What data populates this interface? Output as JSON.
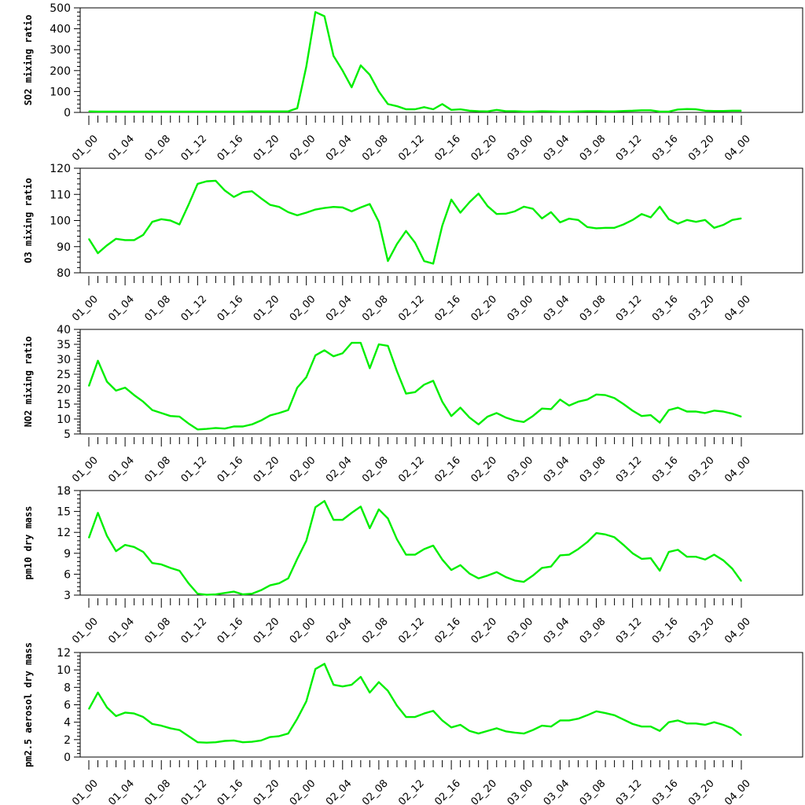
{
  "chart_data": [
    {
      "type": "line",
      "ylabel": "SO2 mixing ratio",
      "xlabel": "",
      "title": "",
      "color": "#00ee00",
      "ylim": [
        0,
        500
      ],
      "yticks": [
        0,
        100,
        200,
        300,
        400,
        500
      ],
      "xtick_labels": [
        "01_00",
        "01_04",
        "01_08",
        "01_12",
        "01_16",
        "01_20",
        "02_00",
        "02_04",
        "02_08",
        "02_12",
        "02_16",
        "02_20",
        "03_00",
        "03_04",
        "03_08",
        "03_12",
        "03_16",
        "03_20",
        "04_00"
      ],
      "values": [
        5,
        4,
        4,
        4,
        4,
        4,
        4,
        4,
        4,
        4,
        4,
        4,
        4,
        4,
        4,
        4,
        4,
        4,
        5,
        5,
        5,
        5,
        5,
        20,
        220,
        480,
        460,
        270,
        200,
        120,
        225,
        180,
        100,
        40,
        30,
        15,
        15,
        25,
        15,
        40,
        12,
        15,
        8,
        6,
        5,
        12,
        6,
        6,
        4,
        4,
        6,
        5,
        4,
        4,
        5,
        6,
        6,
        5,
        5,
        7,
        8,
        10,
        10,
        4,
        4,
        14,
        16,
        15,
        8,
        7,
        7,
        8,
        8
      ]
    },
    {
      "type": "line",
      "ylabel": "O3 mixing ratio",
      "xlabel": "",
      "title": "",
      "color": "#00ee00",
      "ylim": [
        80,
        120
      ],
      "yticks": [
        80,
        90,
        100,
        110,
        120
      ],
      "xtick_labels": [
        "01_00",
        "01_04",
        "01_08",
        "01_12",
        "01_16",
        "01_20",
        "02_00",
        "02_04",
        "02_08",
        "02_12",
        "02_16",
        "02_20",
        "03_00",
        "03_04",
        "03_08",
        "03_12",
        "03_16",
        "03_20",
        "04_00"
      ],
      "values": [
        93,
        87.5,
        90.5,
        93,
        92.5,
        92.5,
        94.5,
        99.5,
        100.5,
        100,
        98.5,
        106,
        114,
        115,
        115.2,
        111.5,
        109,
        110.8,
        111.2,
        108.5,
        106,
        105.2,
        103.2,
        102,
        103,
        104.2,
        104.8,
        105.2,
        105,
        103.5,
        105,
        106.3,
        99.5,
        84.5,
        91,
        96,
        91.5,
        84.5,
        83.5,
        98,
        108,
        103,
        107,
        110.3,
        105.5,
        102.5,
        102.6,
        103.5,
        105.3,
        104.5,
        100.8,
        103.2,
        99.3,
        100.7,
        100.2,
        97.5,
        97,
        97.2,
        97.2,
        98.5,
        100.2,
        102.5,
        101.2,
        105.3,
        100.5,
        98.8,
        100.2,
        99.5,
        100.2,
        97.2,
        98.3,
        100.2,
        100.8
      ]
    },
    {
      "type": "line",
      "ylabel": "NO2 mixing ratio",
      "xlabel": "",
      "title": "",
      "color": "#00ee00",
      "ylim": [
        5,
        40
      ],
      "yticks": [
        5,
        10,
        15,
        20,
        25,
        30,
        35,
        40
      ],
      "xtick_labels": [
        "01_00",
        "01_04",
        "01_08",
        "01_12",
        "01_16",
        "01_20",
        "02_00",
        "02_04",
        "02_08",
        "02_12",
        "02_16",
        "02_20",
        "03_00",
        "03_04",
        "03_08",
        "03_12",
        "03_16",
        "03_20",
        "04_00"
      ],
      "values": [
        21,
        29.5,
        22.5,
        19.5,
        20.5,
        18,
        15.8,
        13,
        12,
        11,
        10.8,
        8.5,
        6.5,
        6.7,
        7,
        6.8,
        7.5,
        7.5,
        8.2,
        9.5,
        11.2,
        12,
        13,
        20.5,
        24,
        31.3,
        33,
        31,
        32,
        35.5,
        35.5,
        27,
        35,
        34.5,
        26,
        18.5,
        19,
        21.5,
        22.8,
        15.8,
        11,
        13.8,
        10.5,
        8.2,
        10.8,
        12,
        10.5,
        9.5,
        9,
        11,
        13.5,
        13.3,
        16.5,
        14.5,
        15.8,
        16.5,
        18.2,
        18,
        17,
        15,
        12.8,
        11,
        11.3,
        8.8,
        13,
        13.8,
        12.5,
        12.5,
        12,
        12.8,
        12.5,
        11.8,
        10.8
      ]
    },
    {
      "type": "line",
      "ylabel": "pm10 dry mass",
      "xlabel": "",
      "title": "",
      "color": "#00ee00",
      "ylim": [
        3,
        18
      ],
      "yticks": [
        3,
        6,
        9,
        12,
        15,
        18
      ],
      "xtick_labels": [
        "01_00",
        "01_04",
        "01_08",
        "01_12",
        "01_16",
        "01_20",
        "02_00",
        "02_04",
        "02_08",
        "02_12",
        "02_16",
        "02_20",
        "03_00",
        "03_04",
        "03_08",
        "03_12",
        "03_16",
        "03_20",
        "04_00"
      ],
      "values": [
        11.2,
        14.8,
        11.5,
        9.3,
        10.2,
        9.9,
        9.2,
        7.6,
        7.4,
        6.9,
        6.5,
        4.7,
        3.2,
        3.05,
        3.1,
        3.3,
        3.5,
        3.1,
        3.2,
        3.7,
        4.4,
        4.7,
        5.4,
        8.2,
        10.8,
        15.6,
        16.5,
        13.8,
        13.8,
        14.8,
        15.7,
        12.6,
        15.3,
        14,
        11,
        8.8,
        8.8,
        9.6,
        10.1,
        8.1,
        6.6,
        7.3,
        6.1,
        5.4,
        5.8,
        6.3,
        5.6,
        5.1,
        4.9,
        5.8,
        6.9,
        7.1,
        8.7,
        8.8,
        9.6,
        10.6,
        11.9,
        11.7,
        11.3,
        10.2,
        9,
        8.2,
        8.3,
        6.5,
        9.2,
        9.5,
        8.5,
        8.5,
        8.1,
        8.8,
        8,
        6.8,
        5
      ]
    },
    {
      "type": "line",
      "ylabel": "pm2.5 aerosol dry mass",
      "xlabel": "",
      "title": "",
      "color": "#00ee00",
      "ylim": [
        0,
        12
      ],
      "yticks": [
        0,
        2,
        4,
        6,
        8,
        10,
        12
      ],
      "xtick_labels": [
        "01_00",
        "01_04",
        "01_08",
        "01_12",
        "01_16",
        "01_20",
        "02_00",
        "02_04",
        "02_08",
        "02_12",
        "02_16",
        "02_20",
        "03_00",
        "03_04",
        "03_08",
        "03_12",
        "03_16",
        "03_20",
        "04_00"
      ],
      "values": [
        5.5,
        7.4,
        5.7,
        4.7,
        5.1,
        5.0,
        4.6,
        3.8,
        3.6,
        3.3,
        3.1,
        2.4,
        1.7,
        1.65,
        1.7,
        1.85,
        1.9,
        1.7,
        1.75,
        1.9,
        2.3,
        2.4,
        2.7,
        4.4,
        6.4,
        10.1,
        10.7,
        8.3,
        8.1,
        8.3,
        9.2,
        7.4,
        8.6,
        7.6,
        5.9,
        4.6,
        4.6,
        5.0,
        5.3,
        4.2,
        3.4,
        3.7,
        3.0,
        2.7,
        3.0,
        3.3,
        2.95,
        2.8,
        2.7,
        3.1,
        3.6,
        3.5,
        4.2,
        4.2,
        4.4,
        4.8,
        5.25,
        5.05,
        4.8,
        4.3,
        3.8,
        3.5,
        3.5,
        3.0,
        4.0,
        4.2,
        3.85,
        3.85,
        3.7,
        4.0,
        3.7,
        3.3,
        2.5
      ]
    }
  ]
}
